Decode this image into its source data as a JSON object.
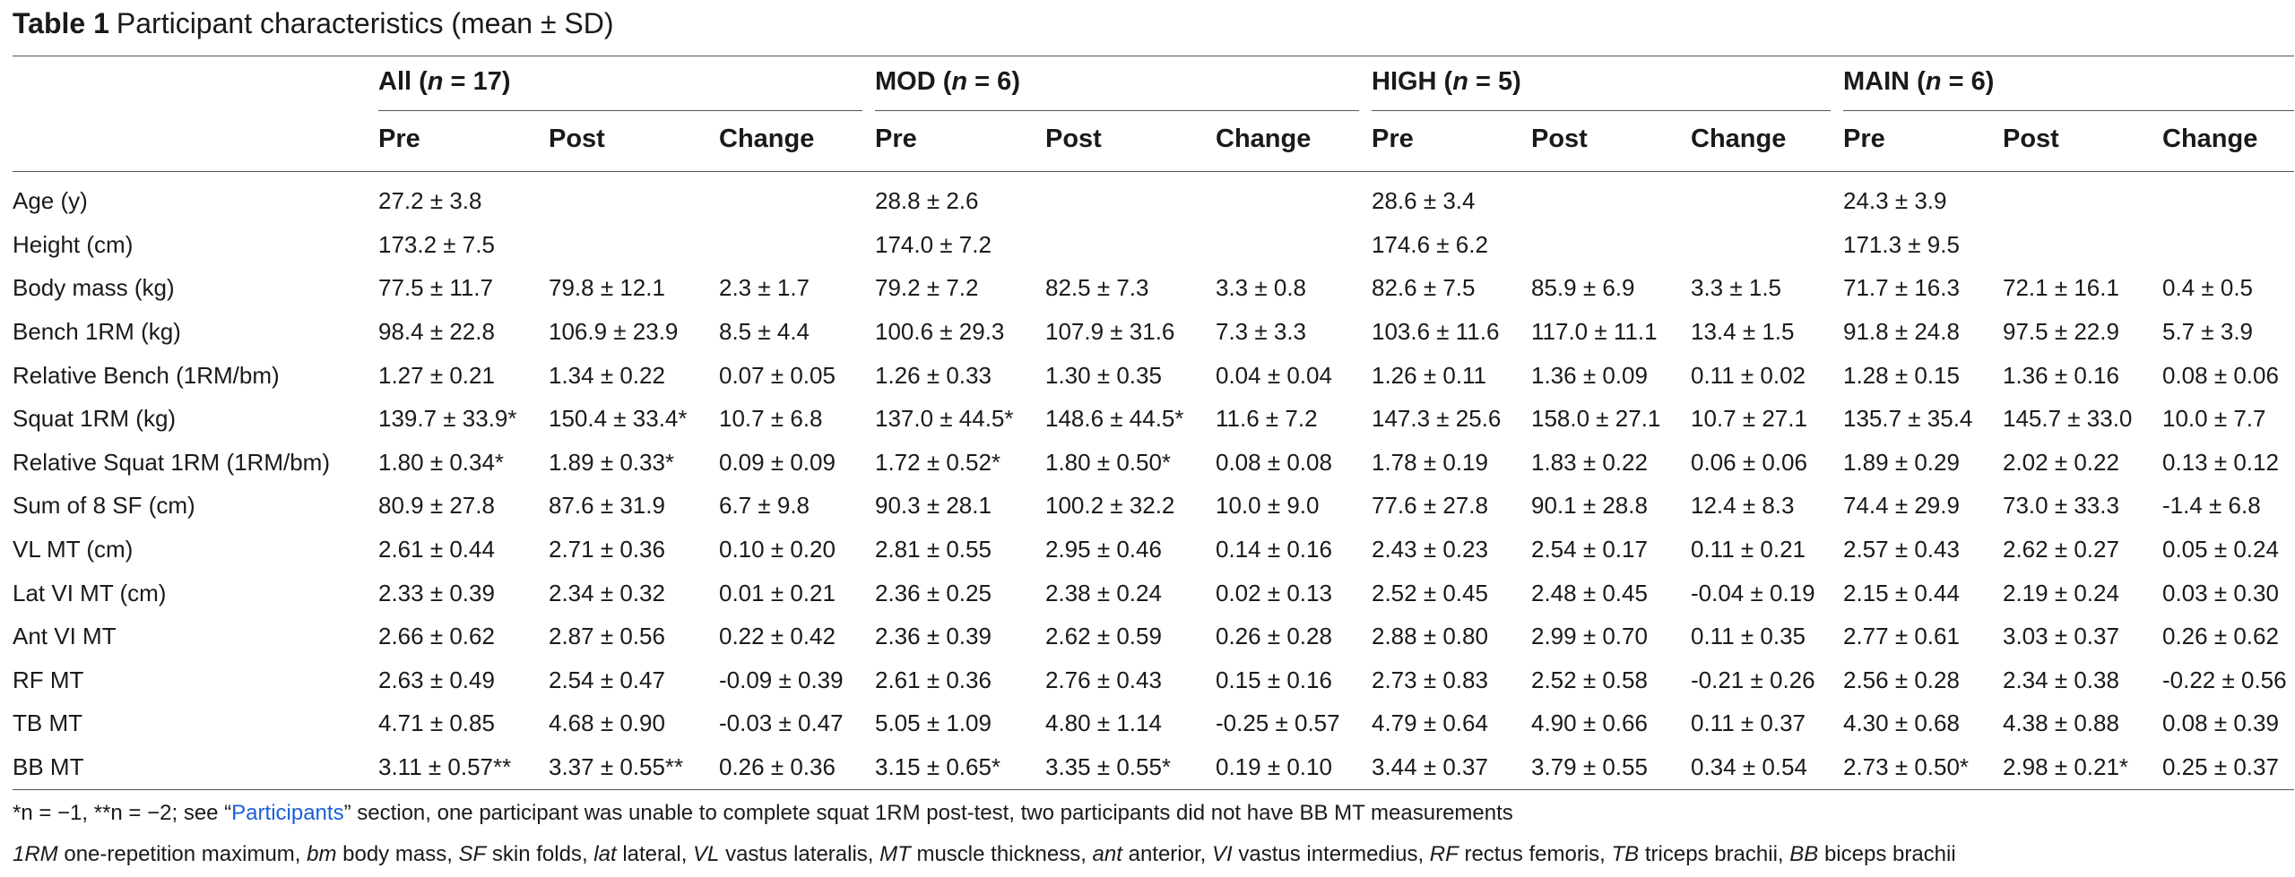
{
  "caption": {
    "number": "Table 1",
    "text": "Participant characteristics (mean ± SD)"
  },
  "groups": [
    {
      "name": "All",
      "n": "17"
    },
    {
      "name": "MOD",
      "n": "6"
    },
    {
      "name": "HIGH",
      "n": "5"
    },
    {
      "name": "MAIN",
      "n": "6"
    }
  ],
  "subheaders": [
    "Pre",
    "Post",
    "Change"
  ],
  "rows": [
    {
      "label": "Age (y)",
      "cells": [
        "27.2 ± 3.8",
        "",
        "",
        "28.8 ± 2.6",
        "",
        "",
        "28.6 ± 3.4",
        "",
        "",
        "24.3 ± 3.9",
        "",
        ""
      ]
    },
    {
      "label": "Height (cm)",
      "cells": [
        "173.2 ± 7.5",
        "",
        "",
        "174.0 ± 7.2",
        "",
        "",
        "174.6 ± 6.2",
        "",
        "",
        "171.3 ± 9.5",
        "",
        ""
      ]
    },
    {
      "label": "Body mass (kg)",
      "cells": [
        "77.5 ± 11.7",
        "79.8 ± 12.1",
        "2.3 ± 1.7",
        "79.2 ± 7.2",
        "82.5 ± 7.3",
        "3.3 ± 0.8",
        "82.6 ± 7.5",
        "85.9 ± 6.9",
        "3.3 ± 1.5",
        "71.7 ± 16.3",
        "72.1 ± 16.1",
        "0.4 ± 0.5"
      ]
    },
    {
      "label": "Bench 1RM (kg)",
      "cells": [
        "98.4 ± 22.8",
        "106.9 ± 23.9",
        "8.5 ± 4.4",
        "100.6 ± 29.3",
        "107.9 ± 31.6",
        "7.3 ± 3.3",
        "103.6 ± 11.6",
        "117.0 ± 11.1",
        "13.4 ± 1.5",
        "91.8 ± 24.8",
        "97.5 ± 22.9",
        "5.7 ± 3.9"
      ]
    },
    {
      "label": "Relative Bench (1RM/bm)",
      "cells": [
        "1.27 ± 0.21",
        "1.34 ± 0.22",
        "0.07 ± 0.05",
        "1.26 ± 0.33",
        "1.30 ± 0.35",
        "0.04 ± 0.04",
        "1.26 ± 0.11",
        "1.36 ± 0.09",
        "0.11 ± 0.02",
        "1.28 ± 0.15",
        "1.36 ± 0.16",
        "0.08 ± 0.06"
      ]
    },
    {
      "label": "Squat 1RM (kg)",
      "cells": [
        "139.7 ± 33.9*",
        "150.4 ± 33.4*",
        "10.7 ± 6.8",
        "137.0 ± 44.5*",
        "148.6 ± 44.5*",
        "11.6 ± 7.2",
        "147.3 ± 25.6",
        "158.0 ± 27.1",
        "10.7 ± 27.1",
        "135.7 ± 35.4",
        "145.7 ± 33.0",
        "10.0 ± 7.7"
      ]
    },
    {
      "label": "Relative Squat 1RM (1RM/bm)",
      "cells": [
        "1.80 ± 0.34*",
        "1.89 ± 0.33*",
        "0.09 ± 0.09",
        "1.72 ± 0.52*",
        "1.80 ± 0.50*",
        "0.08 ± 0.08",
        "1.78 ± 0.19",
        "1.83 ± 0.22",
        "0.06 ± 0.06",
        "1.89 ± 0.29",
        "2.02 ± 0.22",
        "0.13 ± 0.12"
      ]
    },
    {
      "label": "Sum of 8 SF (cm)",
      "cells": [
        "80.9 ± 27.8",
        "87.6 ± 31.9",
        "6.7 ± 9.8",
        "90.3 ± 28.1",
        "100.2 ± 32.2",
        "10.0 ± 9.0",
        "77.6 ± 27.8",
        "90.1 ± 28.8",
        "12.4 ± 8.3",
        "74.4 ± 29.9",
        "73.0 ± 33.3",
        "-1.4 ± 6.8"
      ]
    },
    {
      "label": "VL MT (cm)",
      "cells": [
        "2.61 ± 0.44",
        "2.71 ± 0.36",
        "0.10 ± 0.20",
        "2.81 ± 0.55",
        "2.95 ± 0.46",
        "0.14 ± 0.16",
        "2.43 ± 0.23",
        "2.54 ± 0.17",
        "0.11 ± 0.21",
        "2.57 ± 0.43",
        "2.62 ± 0.27",
        "0.05 ± 0.24"
      ]
    },
    {
      "label": "Lat VI MT (cm)",
      "cells": [
        "2.33 ± 0.39",
        "2.34 ± 0.32",
        "0.01 ± 0.21",
        "2.36 ± 0.25",
        "2.38 ± 0.24",
        "0.02 ± 0.13",
        "2.52 ± 0.45",
        "2.48 ± 0.45",
        "-0.04 ± 0.19",
        "2.15 ± 0.44",
        "2.19 ± 0.24",
        "0.03 ± 0.30"
      ]
    },
    {
      "label": "Ant VI MT",
      "cells": [
        "2.66 ± 0.62",
        "2.87 ± 0.56",
        "0.22 ± 0.42",
        "2.36 ± 0.39",
        "2.62 ± 0.59",
        "0.26 ± 0.28",
        "2.88 ± 0.80",
        "2.99 ± 0.70",
        "0.11 ± 0.35",
        "2.77 ± 0.61",
        "3.03 ± 0.37",
        "0.26 ± 0.62"
      ]
    },
    {
      "label": "RF MT",
      "cells": [
        "2.63 ± 0.49",
        "2.54 ± 0.47",
        "-0.09 ± 0.39",
        "2.61 ± 0.36",
        "2.76 ± 0.43",
        "0.15 ± 0.16",
        "2.73 ± 0.83",
        "2.52 ± 0.58",
        "-0.21 ± 0.26",
        "2.56 ± 0.28",
        "2.34 ± 0.38",
        "-0.22 ± 0.56"
      ]
    },
    {
      "label": "TB MT",
      "cells": [
        "4.71 ± 0.85",
        "4.68 ± 0.90",
        "-0.03 ± 0.47",
        "5.05 ± 1.09",
        "4.80 ± 1.14",
        "-0.25 ± 0.57",
        "4.79 ± 0.64",
        "4.90 ± 0.66",
        "0.11 ± 0.37",
        "4.30 ± 0.68",
        "4.38 ± 0.88",
        "0.08 ± 0.39"
      ]
    },
    {
      "label": "BB MT",
      "cells": [
        "3.11 ± 0.57**",
        "3.37 ± 0.55**",
        "0.26 ± 0.36",
        "3.15 ± 0.65*",
        "3.35 ± 0.55*",
        "0.19 ± 0.10",
        "3.44 ± 0.37",
        "3.79 ± 0.55",
        "0.34 ± 0.54",
        "2.73 ± 0.50*",
        "2.98 ± 0.21*",
        "0.25 ± 0.37"
      ]
    }
  ],
  "footnotes": {
    "line1_prefix": "*n = −1, **n = −2; see “",
    "line1_link": "Participants",
    "line1_suffix": "” section, one participant was unable to complete squat 1RM post-test, two participants did not have BB MT measurements",
    "abbreviations": [
      {
        "abbr": "1RM",
        "def": "one-repetition maximum"
      },
      {
        "abbr": "bm",
        "def": "body mass"
      },
      {
        "abbr": "SF",
        "def": "skin folds"
      },
      {
        "abbr": "lat",
        "def": "lateral"
      },
      {
        "abbr": "VL",
        "def": "vastus lateralis"
      },
      {
        "abbr": "MT",
        "def": "muscle thickness"
      },
      {
        "abbr": "ant",
        "def": "anterior"
      },
      {
        "abbr": "VI",
        "def": "vastus intermedius"
      },
      {
        "abbr": "RF",
        "def": "rectus femoris"
      },
      {
        "abbr": "TB",
        "def": "triceps brachii"
      },
      {
        "abbr": "BB",
        "def": "biceps brachii"
      }
    ]
  }
}
